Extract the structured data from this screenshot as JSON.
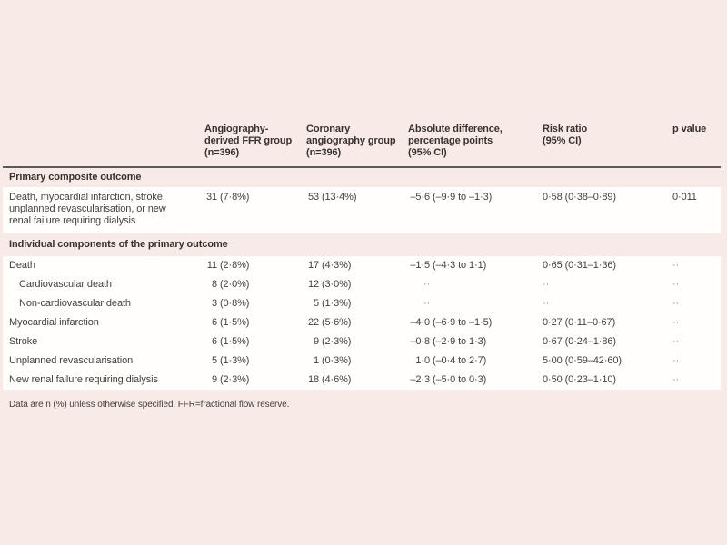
{
  "colors": {
    "page_background": "#f8eae6",
    "row_background": "#fffefd",
    "header_rule": "#5c5855",
    "body_text": "#44403c",
    "heading_text": "#37322e",
    "dots_text": "#8a8480"
  },
  "table": {
    "columns": [
      {
        "label": ""
      },
      {
        "label": "Angiography-\nderived FFR group\n(n=396)"
      },
      {
        "label": "Coronary\nangiography group\n(n=396)"
      },
      {
        "label": "Absolute difference,\npercentage points\n(95% CI)"
      },
      {
        "label": "Risk ratio\n(95% CI)"
      },
      {
        "label": "p value"
      }
    ],
    "sections": [
      {
        "title": "Primary composite outcome",
        "tall": false,
        "rows": [
          {
            "label": "Death, myocardial infarction, stroke,\nunplanned revascularisation, or new\nrenal failure requiring dialysis",
            "indent": false,
            "multiline": true,
            "cells": [
              "31 (7·8%)",
              "53 (13·4%)",
              "–5·6 (–9·9 to –1·3)",
              "0·58 (0·38–0·89)",
              "0·011"
            ]
          }
        ]
      },
      {
        "title": "Individual components of the primary outcome",
        "tall": true,
        "rows": [
          {
            "label": "Death",
            "indent": false,
            "multiline": false,
            "cells": [
              "11 (2·8%)",
              "17 (4·3%)",
              "–1·5 (–4·3 to 1·1)",
              "0·65 (0·31–1·36)",
              "··"
            ]
          },
          {
            "label": "Cardiovascular death",
            "indent": true,
            "multiline": false,
            "cells": [
              "8 (2·0%)",
              "12 (3·0%)",
              "··",
              "··",
              "··"
            ]
          },
          {
            "label": "Non-cardiovascular death",
            "indent": true,
            "multiline": false,
            "cells": [
              "3 (0·8%)",
              "5 (1·3%)",
              "··",
              "··",
              "··"
            ]
          },
          {
            "label": "Myocardial infarction",
            "indent": false,
            "multiline": false,
            "cells": [
              "6 (1·5%)",
              "22 (5·6%)",
              "–4·0 (–6·9 to –1·5)",
              "0·27 (0·11–0·67)",
              "··"
            ]
          },
          {
            "label": "Stroke",
            "indent": false,
            "multiline": false,
            "cells": [
              "6 (1·5%)",
              "9 (2·3%)",
              "–0·8 (–2·9 to 1·3)",
              "0·67 (0·24–1·86)",
              "··"
            ]
          },
          {
            "label": "Unplanned revascularisation",
            "indent": false,
            "multiline": false,
            "cells": [
              "5 (1·3%)",
              "1 (0·3%)",
              "1·0 (–0·4 to 2·7)",
              "5·00 (0·59–42·60)",
              "··"
            ]
          },
          {
            "label": "New renal failure requiring dialysis",
            "indent": false,
            "multiline": false,
            "cells": [
              "9 (2·3%)",
              "18 (4·6%)",
              "–2·3 (–5·0 to 0·3)",
              "0·50 (0·23–1·10)",
              "··"
            ]
          }
        ]
      }
    ],
    "footnote": "Data are n (%) unless otherwise specified. FFR=fractional flow reserve."
  }
}
